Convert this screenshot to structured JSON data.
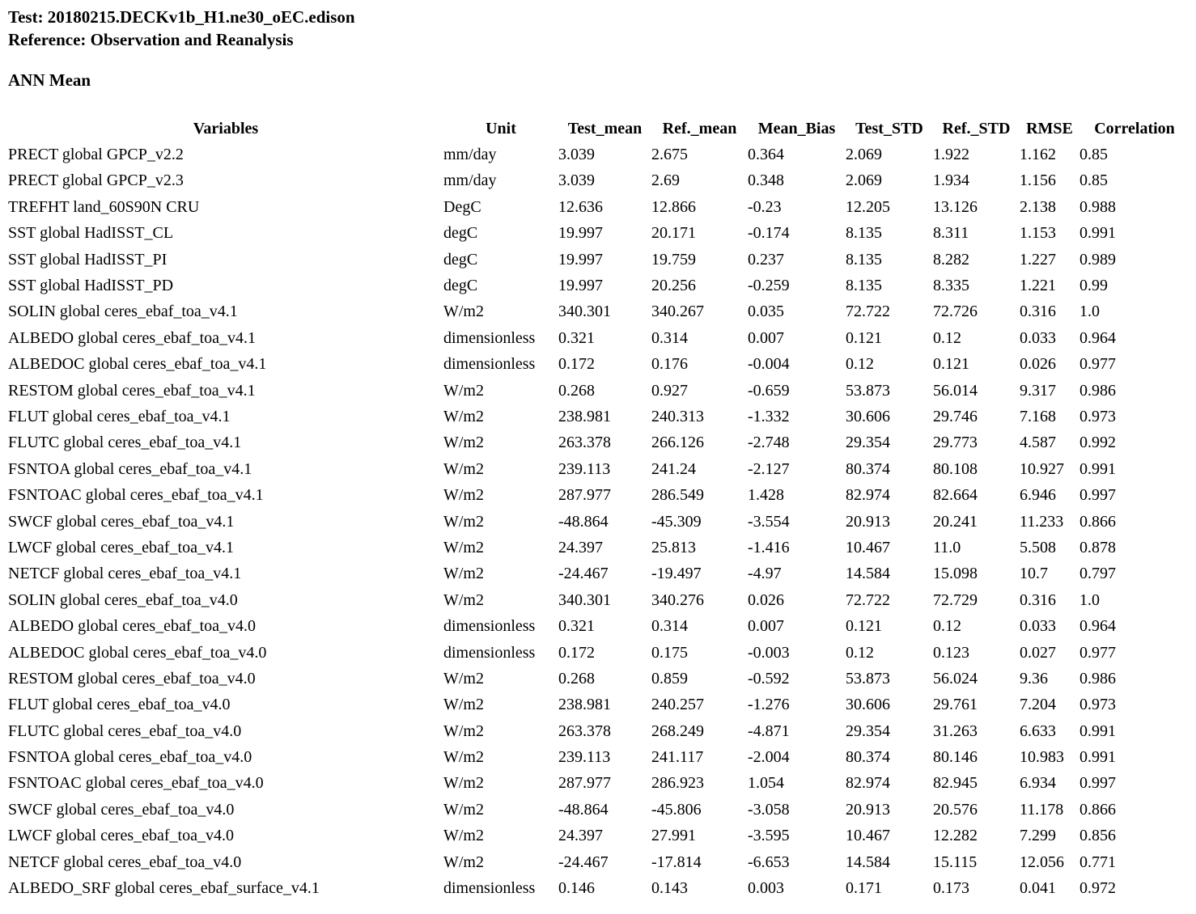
{
  "header": {
    "test_label": "Test: 20180215.DECKv1b_H1.ne30_oEC.edison",
    "reference_label": "Reference: Observation and Reanalysis",
    "section_label": "ANN Mean"
  },
  "table": {
    "columns": [
      "Variables",
      "Unit",
      "Test_mean",
      "Ref._mean",
      "Mean_Bias",
      "Test_STD",
      "Ref._STD",
      "RMSE",
      "Correlation"
    ],
    "rows": [
      [
        "PRECT global GPCP_v2.2",
        "mm/day",
        "3.039",
        "2.675",
        "0.364",
        "2.069",
        "1.922",
        "1.162",
        "0.85"
      ],
      [
        "PRECT global GPCP_v2.3",
        "mm/day",
        "3.039",
        "2.69",
        "0.348",
        "2.069",
        "1.934",
        "1.156",
        "0.85"
      ],
      [
        "TREFHT land_60S90N CRU",
        "DegC",
        "12.636",
        "12.866",
        "-0.23",
        "12.205",
        "13.126",
        "2.138",
        "0.988"
      ],
      [
        "SST global HadISST_CL",
        "degC",
        "19.997",
        "20.171",
        "-0.174",
        "8.135",
        "8.311",
        "1.153",
        "0.991"
      ],
      [
        "SST global HadISST_PI",
        "degC",
        "19.997",
        "19.759",
        "0.237",
        "8.135",
        "8.282",
        "1.227",
        "0.989"
      ],
      [
        "SST global HadISST_PD",
        "degC",
        "19.997",
        "20.256",
        "-0.259",
        "8.135",
        "8.335",
        "1.221",
        "0.99"
      ],
      [
        "SOLIN global ceres_ebaf_toa_v4.1",
        "W/m2",
        "340.301",
        "340.267",
        "0.035",
        "72.722",
        "72.726",
        "0.316",
        "1.0"
      ],
      [
        "ALBEDO global ceres_ebaf_toa_v4.1",
        "dimensionless",
        "0.321",
        "0.314",
        "0.007",
        "0.121",
        "0.12",
        "0.033",
        "0.964"
      ],
      [
        "ALBEDOC global ceres_ebaf_toa_v4.1",
        "dimensionless",
        "0.172",
        "0.176",
        "-0.004",
        "0.12",
        "0.121",
        "0.026",
        "0.977"
      ],
      [
        "RESTOM global ceres_ebaf_toa_v4.1",
        "W/m2",
        "0.268",
        "0.927",
        "-0.659",
        "53.873",
        "56.014",
        "9.317",
        "0.986"
      ],
      [
        "FLUT global ceres_ebaf_toa_v4.1",
        "W/m2",
        "238.981",
        "240.313",
        "-1.332",
        "30.606",
        "29.746",
        "7.168",
        "0.973"
      ],
      [
        "FLUTC global ceres_ebaf_toa_v4.1",
        "W/m2",
        "263.378",
        "266.126",
        "-2.748",
        "29.354",
        "29.773",
        "4.587",
        "0.992"
      ],
      [
        "FSNTOA global ceres_ebaf_toa_v4.1",
        "W/m2",
        "239.113",
        "241.24",
        "-2.127",
        "80.374",
        "80.108",
        "10.927",
        "0.991"
      ],
      [
        "FSNTOAC global ceres_ebaf_toa_v4.1",
        "W/m2",
        "287.977",
        "286.549",
        "1.428",
        "82.974",
        "82.664",
        "6.946",
        "0.997"
      ],
      [
        "SWCF global ceres_ebaf_toa_v4.1",
        "W/m2",
        "-48.864",
        "-45.309",
        "-3.554",
        "20.913",
        "20.241",
        "11.233",
        "0.866"
      ],
      [
        "LWCF global ceres_ebaf_toa_v4.1",
        "W/m2",
        "24.397",
        "25.813",
        "-1.416",
        "10.467",
        "11.0",
        "5.508",
        "0.878"
      ],
      [
        "NETCF global ceres_ebaf_toa_v4.1",
        "W/m2",
        "-24.467",
        "-19.497",
        "-4.97",
        "14.584",
        "15.098",
        "10.7",
        "0.797"
      ],
      [
        "SOLIN global ceres_ebaf_toa_v4.0",
        "W/m2",
        "340.301",
        "340.276",
        "0.026",
        "72.722",
        "72.729",
        "0.316",
        "1.0"
      ],
      [
        "ALBEDO global ceres_ebaf_toa_v4.0",
        "dimensionless",
        "0.321",
        "0.314",
        "0.007",
        "0.121",
        "0.12",
        "0.033",
        "0.964"
      ],
      [
        "ALBEDOC global ceres_ebaf_toa_v4.0",
        "dimensionless",
        "0.172",
        "0.175",
        "-0.003",
        "0.12",
        "0.123",
        "0.027",
        "0.977"
      ],
      [
        "RESTOM global ceres_ebaf_toa_v4.0",
        "W/m2",
        "0.268",
        "0.859",
        "-0.592",
        "53.873",
        "56.024",
        "9.36",
        "0.986"
      ],
      [
        "FLUT global ceres_ebaf_toa_v4.0",
        "W/m2",
        "238.981",
        "240.257",
        "-1.276",
        "30.606",
        "29.761",
        "7.204",
        "0.973"
      ],
      [
        "FLUTC global ceres_ebaf_toa_v4.0",
        "W/m2",
        "263.378",
        "268.249",
        "-4.871",
        "29.354",
        "31.263",
        "6.633",
        "0.991"
      ],
      [
        "FSNTOA global ceres_ebaf_toa_v4.0",
        "W/m2",
        "239.113",
        "241.117",
        "-2.004",
        "80.374",
        "80.146",
        "10.983",
        "0.991"
      ],
      [
        "FSNTOAC global ceres_ebaf_toa_v4.0",
        "W/m2",
        "287.977",
        "286.923",
        "1.054",
        "82.974",
        "82.945",
        "6.934",
        "0.997"
      ],
      [
        "SWCF global ceres_ebaf_toa_v4.0",
        "W/m2",
        "-48.864",
        "-45.806",
        "-3.058",
        "20.913",
        "20.576",
        "11.178",
        "0.866"
      ],
      [
        "LWCF global ceres_ebaf_toa_v4.0",
        "W/m2",
        "24.397",
        "27.991",
        "-3.595",
        "10.467",
        "12.282",
        "7.299",
        "0.856"
      ],
      [
        "NETCF global ceres_ebaf_toa_v4.0",
        "W/m2",
        "-24.467",
        "-17.814",
        "-6.653",
        "14.584",
        "15.115",
        "12.056",
        "0.771"
      ],
      [
        "ALBEDO_SRF global ceres_ebaf_surface_v4.1",
        "dimensionless",
        "0.146",
        "0.143",
        "0.003",
        "0.171",
        "0.173",
        "0.041",
        "0.972"
      ]
    ]
  }
}
